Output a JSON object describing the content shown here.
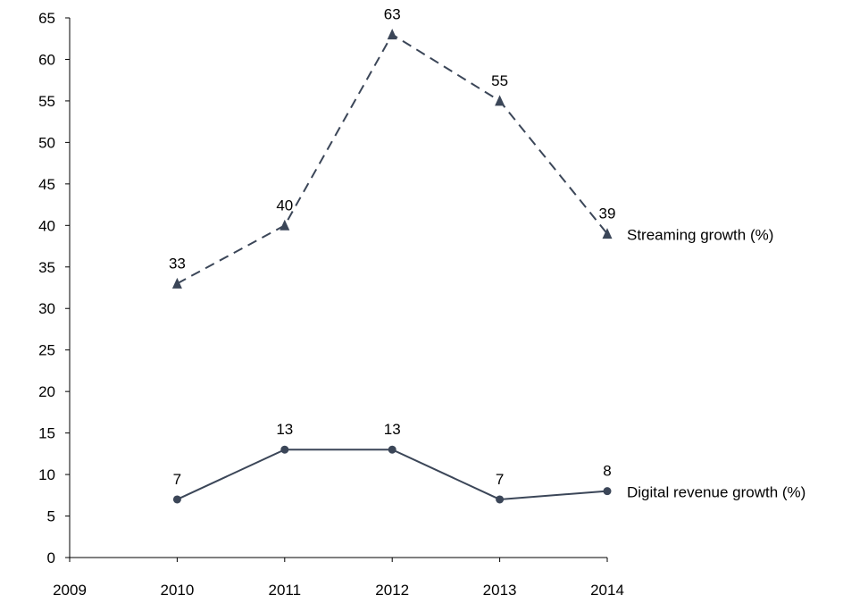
{
  "chart_data": {
    "type": "line",
    "x_ticks": [
      "2009",
      "2010",
      "2011",
      "2012",
      "2013",
      "2014"
    ],
    "x": [
      "2010",
      "2011",
      "2012",
      "2013",
      "2014"
    ],
    "y_ticks": [
      "0",
      "5",
      "10",
      "15",
      "20",
      "25",
      "30",
      "35",
      "40",
      "45",
      "50",
      "55",
      "60",
      "65"
    ],
    "ylim": [
      0,
      65
    ],
    "grid": false,
    "legend": "inline labels at line ends",
    "series": [
      {
        "name": "Streaming growth (%)",
        "values": [
          33,
          40,
          63,
          55,
          39
        ],
        "marker": "triangle",
        "line_style": "dashed",
        "color": "#3b4658"
      },
      {
        "name": "Digital revenue growth (%)",
        "values": [
          7,
          13,
          13,
          7,
          8
        ],
        "marker": "circle",
        "line_style": "solid",
        "color": "#3b4658"
      }
    ]
  }
}
